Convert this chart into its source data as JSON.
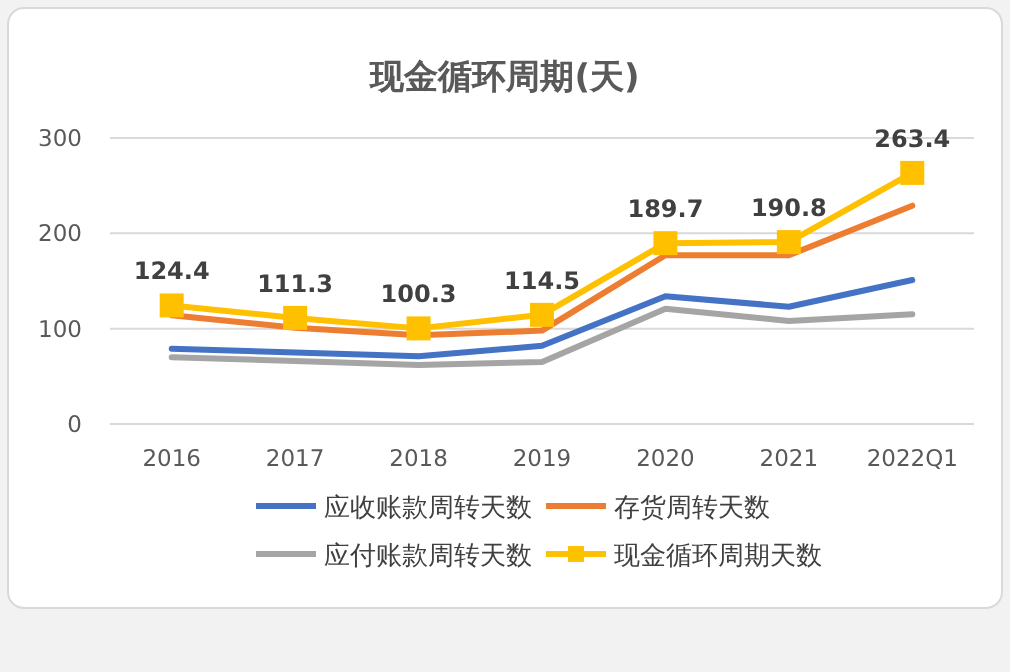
{
  "chart_data": {
    "type": "line",
    "title": "现金循环周期(天)",
    "categories": [
      "2016",
      "2017",
      "2018",
      "2019",
      "2020",
      "2021",
      "2022Q1"
    ],
    "series": [
      {
        "name": "应收账款周转天数",
        "color": "#4472c4",
        "values": [
          79,
          75,
          71,
          82,
          134,
          123,
          151
        ]
      },
      {
        "name": "存货周转天数",
        "color": "#ed7d31",
        "values": [
          114,
          101,
          93,
          98,
          177,
          177,
          229
        ]
      },
      {
        "name": "应付账款周转天数",
        "color": "#a5a5a5",
        "values": [
          70,
          66,
          62,
          65,
          121,
          108,
          115
        ]
      },
      {
        "name": "现金循环周期天数",
        "color": "#ffc000",
        "values": [
          124.4,
          111.3,
          100.3,
          114.5,
          189.7,
          190.8,
          263.4
        ],
        "marker": "square",
        "value_labels": [
          "124.4",
          "111.3",
          "100.3",
          "114.5",
          "189.7",
          "190.8",
          "263.4"
        ]
      }
    ],
    "ylim": [
      0,
      300
    ],
    "yticks": [
      0,
      100,
      200,
      300
    ],
    "grid": "y",
    "legend": "bottom"
  }
}
